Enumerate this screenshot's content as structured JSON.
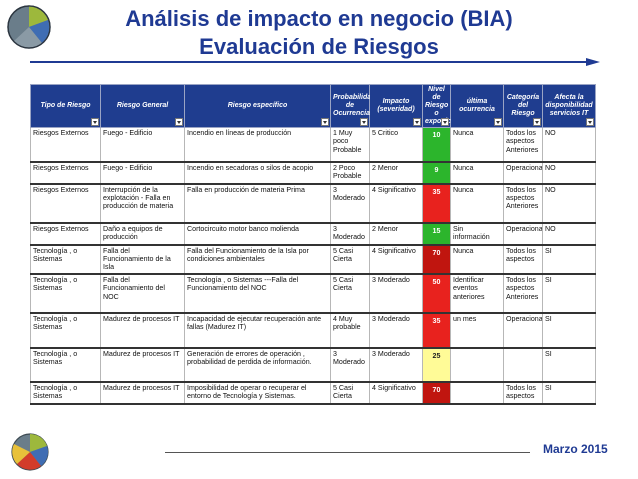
{
  "header": {
    "title": "Análisis de impacto en negocio (BIA)",
    "subtitle": "Evaluación de Riesgos"
  },
  "table": {
    "columns": [
      "Tipo de Riesgo",
      "Riesgo General",
      "Riesgo específico",
      "Probabilidad de Ocurrencia",
      "Impacto (severidad)",
      "Nivel de Riesgo o exposición",
      "última ocurrencia",
      "Categoría del Riesgo",
      "Afecta la disponibilidad servicios IT"
    ],
    "rows": [
      {
        "tipo": "Riesgos Externos",
        "general": "Fuego - Edificio",
        "especifico": "Incendio en líneas de producción",
        "prob": "1 Muy poco Probable",
        "impacto": "5 Critico",
        "nivel": "10",
        "nivel_color": "#2cb52c",
        "ultima": "Nunca",
        "categoria": "Todos los aspectos Anteriores",
        "afecta": "NO"
      },
      {
        "tipo": "Riesgos Externos",
        "general": "Fuego - Edificio",
        "especifico": "Incendio en secadoras o silos de acopio",
        "prob": "2 Poco Probable",
        "impacto": "2 Menor",
        "nivel": "9",
        "nivel_color": "#2cb52c",
        "ultima": "Nunca",
        "categoria": "Operacional",
        "afecta": "NO"
      },
      {
        "tipo": "Riesgos Externos",
        "general": "Interrupción de la explotación - Falla en producción de materia",
        "especifico": "Falla en producción de materia Prima",
        "prob": "3 Moderado",
        "impacto": "4 Significativo",
        "nivel": "35",
        "nivel_color": "#e8221e",
        "ultima": "Nunca",
        "categoria": "Todos los aspectos Anteriores",
        "afecta": "NO"
      },
      {
        "tipo": "Riesgos Externos",
        "general": "Daño a equipos de producción",
        "especifico": "Cortocircuito motor banco molienda",
        "prob": "3 Moderado",
        "impacto": "2 Menor",
        "nivel": "15",
        "nivel_color": "#2cb52c",
        "ultima": "Sin información",
        "categoria": "Operacional",
        "afecta": "NO"
      },
      {
        "tipo": "Tecnología , o Sistemas",
        "general": "Falla del Funcionamiento de la Isla",
        "especifico": "Falla del Funcionamiento de la Isla por condiciones ambientales",
        "prob": "5 Casi Cierta",
        "impacto": "4 Significativo",
        "nivel": "70",
        "nivel_color": "#c0150f",
        "ultima": "Nunca",
        "categoria": "Todos los aspectos",
        "afecta": "SI"
      },
      {
        "tipo": "Tecnología , o Sistemas",
        "general": "Falla del Funcionamiento del NOC",
        "especifico": "Tecnología , o Sistemas ---Falla del Funcionamiento del NOC",
        "prob": "5 Casi Cierta",
        "impacto": "3 Moderado",
        "nivel": "50",
        "nivel_color": "#e8221e",
        "ultima": "Identificar eventos anteriores",
        "categoria": "Todos los aspectos Anteriores",
        "afecta": "SI"
      },
      {
        "tipo": "Tecnología , o Sistemas",
        "general": "Madurez de procesos IT",
        "especifico": "Incapacidad de ejecutar recuperación ante fallas (Madurez IT)",
        "prob": "4 Muy probable",
        "impacto": "3 Moderado",
        "nivel": "35",
        "nivel_color": "#e8221e",
        "ultima": "un mes",
        "categoria": "Operacional",
        "afecta": "SI"
      },
      {
        "tipo": "Tecnología , o Sistemas",
        "general": "Madurez de procesos IT",
        "especifico": "Generación de errores de operación , probabilidad de perdida de información.",
        "prob": "3 Moderado",
        "impacto": "3 Moderado",
        "nivel": "25",
        "nivel_color": "#fffb97",
        "ultima": "",
        "categoria": "",
        "afecta": "SI"
      },
      {
        "tipo": "Tecnología , o Sistemas",
        "general": "Madurez de procesos IT",
        "especifico": "Imposibilidad de operar o recuperar el entorno de Tecnología y Sistemas.",
        "prob": "5 Casi Cierta",
        "impacto": "4 Significativo",
        "nivel": "70",
        "nivel_color": "#c0150f",
        "ultima": "",
        "categoria": "Todos los aspectos",
        "afecta": "SI"
      }
    ]
  },
  "footer": {
    "date": "Marzo 2015"
  }
}
